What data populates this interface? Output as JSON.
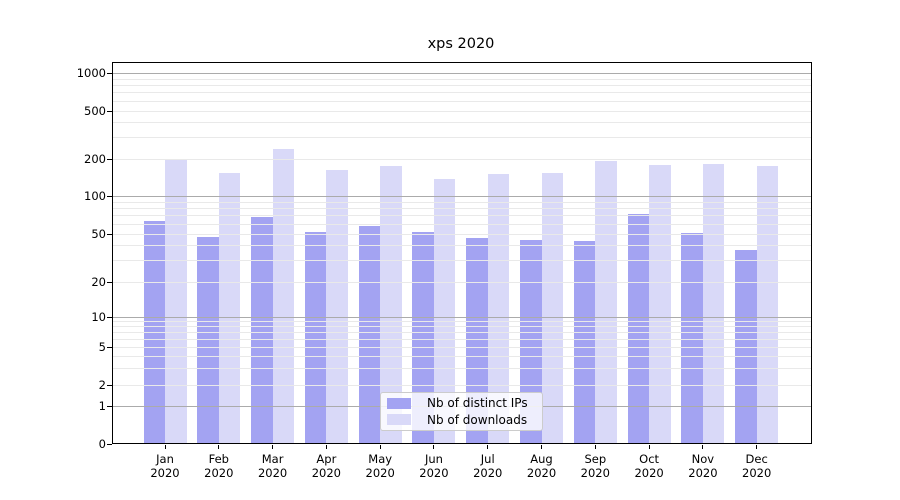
{
  "chart_data": {
    "type": "bar",
    "title": "xps 2020",
    "x_tick_labels": [
      "Jan\n2020",
      "Feb\n2020",
      "Mar\n2020",
      "Apr\n2020",
      "May\n2020",
      "Jun\n2020",
      "Jul\n2020",
      "Aug\n2020",
      "Sep\n2020",
      "Oct\n2020",
      "Nov\n2020",
      "Dec\n2020"
    ],
    "y_tick_labels": [
      "0",
      "1",
      "2",
      "5",
      "10",
      "20",
      "50",
      "100",
      "200",
      "500",
      "1000"
    ],
    "y_tick_values": [
      0,
      1,
      2,
      5,
      10,
      20,
      50,
      100,
      200,
      500,
      1000
    ],
    "yscale": "symlog",
    "ylim": [
      0,
      1250
    ],
    "grid": "horizontal major and minor",
    "legend_position": "lower center",
    "series": [
      {
        "name": "Nb of distinct IPs",
        "color": "#a3a3f2",
        "values": [
          64,
          47,
          68,
          52,
          58,
          52,
          46,
          45,
          44,
          73,
          51,
          37
        ]
      },
      {
        "name": "Nb of downloads",
        "color": "#d9d9f8",
        "values": [
          203,
          154,
          242,
          163,
          176,
          139,
          152,
          154,
          194,
          180,
          182,
          177
        ]
      }
    ]
  }
}
